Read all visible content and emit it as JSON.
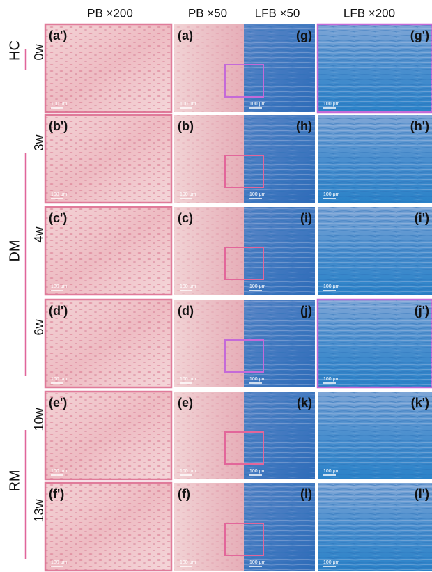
{
  "column_headers": [
    "PB ×200",
    "PB ×50",
    "LFB ×50",
    "LFB ×200"
  ],
  "scale_bar": "100 μm",
  "groups": [
    {
      "name": "HC",
      "rows": [
        {
          "time": "0w",
          "panels": [
            "(a')",
            "(a)",
            "(g)",
            "(g')"
          ]
        }
      ]
    },
    {
      "name": "DM",
      "rows": [
        {
          "time": "3w",
          "panels": [
            "(b')",
            "(b)",
            "(h)",
            "(h')"
          ]
        },
        {
          "time": "4w",
          "panels": [
            "(c')",
            "(c)",
            "(i)",
            "(i')"
          ]
        },
        {
          "time": "6w",
          "panels": [
            "(d')",
            "(d)",
            "(j)",
            "(j')"
          ]
        }
      ]
    },
    {
      "name": "RM",
      "rows": [
        {
          "time": "10w",
          "panels": [
            "(e')",
            "(e)",
            "(k)",
            "(k')"
          ]
        },
        {
          "time": "13w",
          "panels": [
            "(f')",
            "(f)",
            "(l)",
            "(l')"
          ]
        }
      ]
    }
  ]
}
